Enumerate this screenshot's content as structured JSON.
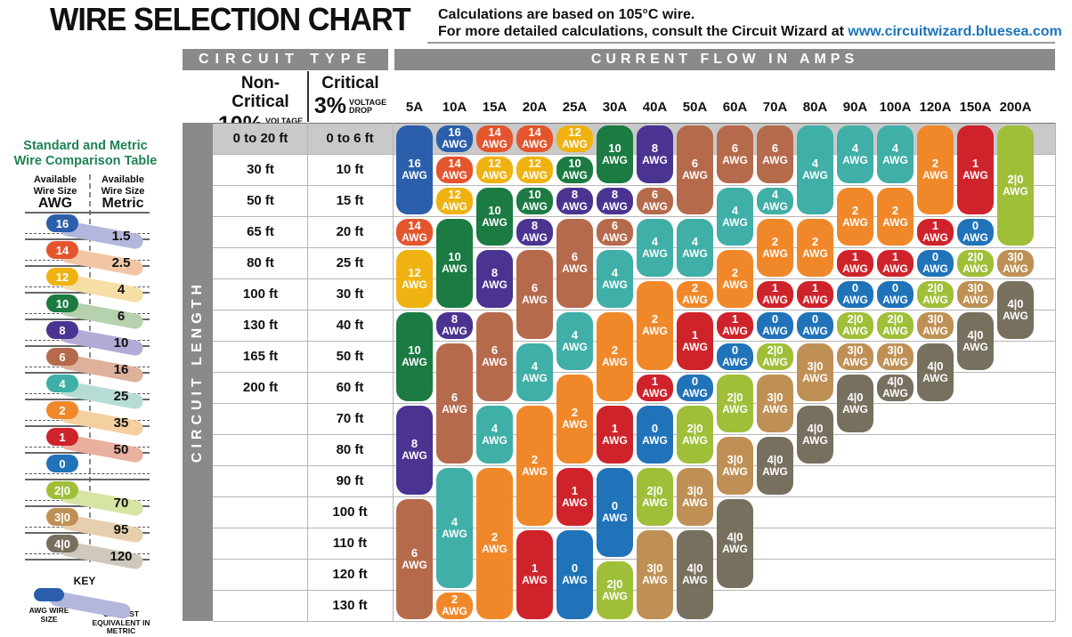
{
  "ui": {
    "title": "WIRE SELECTION CHART",
    "subtitle_line1": "Calculations are based on 105°C wire.",
    "subtitle_line2_prefix": "For more detailed calculations, consult the Circuit Wizard at ",
    "subtitle_link": "www.circuitwizard.bluesea.com",
    "circuit_type_header": "CIRCUIT TYPE",
    "current_flow_header": "CURRENT FLOW IN AMPS",
    "non_critical_label": "Non-Critical",
    "non_critical_pct": "10%",
    "critical_label": "Critical",
    "critical_pct": "3%",
    "voltage_drop_line1": "VOLTAGE",
    "voltage_drop_line2": "DROP",
    "circuit_length_label": "CIRCUIT LENGTH",
    "comparison_title_line1": "Standard and Metric",
    "comparison_title_line2": "Wire Comparison Table",
    "available_header": "Available Wire Size",
    "awg_unit": "AWG",
    "metric_unit": "Metric",
    "key_title": "KEY",
    "key_left_label": "AWG WIRE SIZE",
    "key_right_label": "CLOSEST EQUIVALENT IN METRIC"
  },
  "colors": {
    "header_bar_gray": "#8a8a8a",
    "row1_band_gray": "#c9c9c9",
    "grid_line": "#b5b5b5",
    "link_blue": "#1b75bb",
    "comparison_title_green": "#1e8253",
    "key_band_blue": "#b3b7dc",
    "wire_colors": {
      "16": "#2b5fac",
      "14": "#e4552e",
      "12": "#efb211",
      "10": "#1b7b42",
      "8": "#4b3391",
      "6": "#b56a4c",
      "4": "#3fafa8",
      "2": "#f0882a",
      "1": "#cf232b",
      "0": "#2173b9",
      "2|0": "#9fbf39",
      "3|0": "#bf9055",
      "4|0": "#77705f"
    }
  },
  "chart_data": {
    "type": "table",
    "title": "WIRE SELECTION CHART",
    "awg_suffix": "AWG",
    "rows": [
      {
        "non_critical": "0 to 20 ft",
        "critical": "0 to 6 ft"
      },
      {
        "non_critical": "30 ft",
        "critical": "10 ft"
      },
      {
        "non_critical": "50 ft",
        "critical": "15 ft"
      },
      {
        "non_critical": "65 ft",
        "critical": "20 ft"
      },
      {
        "non_critical": "80 ft",
        "critical": "25 ft"
      },
      {
        "non_critical": "100 ft",
        "critical": "30 ft"
      },
      {
        "non_critical": "130 ft",
        "critical": "40 ft"
      },
      {
        "non_critical": "165 ft",
        "critical": "50 ft"
      },
      {
        "non_critical": "200 ft",
        "critical": "60 ft"
      },
      {
        "non_critical": "",
        "critical": "70 ft"
      },
      {
        "non_critical": "",
        "critical": "80 ft"
      },
      {
        "non_critical": "",
        "critical": "90 ft"
      },
      {
        "non_critical": "",
        "critical": "100 ft"
      },
      {
        "non_critical": "",
        "critical": "110 ft"
      },
      {
        "non_critical": "",
        "critical": "120 ft"
      },
      {
        "non_critical": "",
        "critical": "130 ft"
      }
    ],
    "columns": [
      {
        "label": "5A",
        "pills": [
          [
            "16",
            1,
            3
          ],
          [
            "14",
            4,
            4
          ],
          [
            "12",
            5,
            6
          ],
          [
            "10",
            7,
            9
          ],
          [
            "8",
            10,
            12
          ],
          [
            "6",
            13,
            16
          ]
        ]
      },
      {
        "label": "10A",
        "pills": [
          [
            "16",
            1,
            1
          ],
          [
            "14",
            2,
            2
          ],
          [
            "12",
            3,
            3
          ],
          [
            "10",
            4,
            6
          ],
          [
            "8",
            7,
            7
          ],
          [
            "6",
            8,
            11
          ],
          [
            "4",
            12,
            15
          ],
          [
            "2",
            16,
            16
          ]
        ]
      },
      {
        "label": "15A",
        "pills": [
          [
            "14",
            1,
            1
          ],
          [
            "12",
            2,
            2
          ],
          [
            "10",
            3,
            4
          ],
          [
            "8",
            5,
            6
          ],
          [
            "6",
            7,
            9
          ],
          [
            "4",
            10,
            11
          ],
          [
            "2",
            12,
            16
          ]
        ]
      },
      {
        "label": "20A",
        "pills": [
          [
            "14",
            1,
            1
          ],
          [
            "12",
            2,
            2
          ],
          [
            "10",
            3,
            3
          ],
          [
            "8",
            4,
            4
          ],
          [
            "6",
            5,
            7
          ],
          [
            "4",
            8,
            9
          ],
          [
            "2",
            10,
            13
          ],
          [
            "1",
            14,
            16
          ]
        ]
      },
      {
        "label": "25A",
        "pills": [
          [
            "12",
            1,
            1
          ],
          [
            "10",
            2,
            2
          ],
          [
            "8",
            3,
            3
          ],
          [
            "6",
            4,
            6
          ],
          [
            "4",
            7,
            8
          ],
          [
            "2",
            9,
            11
          ],
          [
            "1",
            12,
            13
          ],
          [
            "0",
            14,
            16
          ]
        ]
      },
      {
        "label": "30A",
        "pills": [
          [
            "10",
            1,
            2
          ],
          [
            "8",
            3,
            3
          ],
          [
            "6",
            4,
            4
          ],
          [
            "4",
            5,
            6
          ],
          [
            "2",
            7,
            9
          ],
          [
            "1",
            10,
            11
          ],
          [
            "0",
            12,
            14
          ],
          [
            "2|0",
            15,
            16
          ]
        ]
      },
      {
        "label": "40A",
        "pills": [
          [
            "8",
            1,
            2
          ],
          [
            "6",
            3,
            3
          ],
          [
            "4",
            4,
            5
          ],
          [
            "2",
            6,
            8
          ],
          [
            "1",
            9,
            9
          ],
          [
            "0",
            10,
            11
          ],
          [
            "2|0",
            12,
            13
          ],
          [
            "3|0",
            14,
            16
          ]
        ]
      },
      {
        "label": "50A",
        "pills": [
          [
            "6",
            1,
            3
          ],
          [
            "4",
            4,
            5
          ],
          [
            "2",
            6,
            6
          ],
          [
            "1",
            7,
            8
          ],
          [
            "0",
            9,
            9
          ],
          [
            "2|0",
            10,
            11
          ],
          [
            "3|0",
            12,
            13
          ],
          [
            "4|0",
            14,
            16
          ]
        ]
      },
      {
        "label": "60A",
        "pills": [
          [
            "6",
            1,
            2
          ],
          [
            "4",
            3,
            4
          ],
          [
            "2",
            5,
            6
          ],
          [
            "1",
            7,
            7
          ],
          [
            "0",
            8,
            8
          ],
          [
            "2|0",
            9,
            10
          ],
          [
            "3|0",
            11,
            12
          ],
          [
            "4|0",
            13,
            15
          ]
        ]
      },
      {
        "label": "70A",
        "pills": [
          [
            "6",
            1,
            2
          ],
          [
            "4",
            3,
            3
          ],
          [
            "2",
            4,
            5
          ],
          [
            "1",
            6,
            6
          ],
          [
            "0",
            7,
            7
          ],
          [
            "2|0",
            8,
            8
          ],
          [
            "3|0",
            9,
            10
          ],
          [
            "4|0",
            11,
            12
          ]
        ]
      },
      {
        "label": "80A",
        "pills": [
          [
            "4",
            1,
            3
          ],
          [
            "2",
            4,
            5
          ],
          [
            "1",
            6,
            6
          ],
          [
            "0",
            7,
            7
          ],
          [
            "3|0",
            8,
            9
          ],
          [
            "4|0",
            10,
            11
          ]
        ]
      },
      {
        "label": "90A",
        "pills": [
          [
            "4",
            1,
            2
          ],
          [
            "2",
            3,
            4
          ],
          [
            "1",
            5,
            5
          ],
          [
            "0",
            6,
            6
          ],
          [
            "2|0",
            7,
            7
          ],
          [
            "3|0",
            8,
            8
          ],
          [
            "4|0",
            9,
            10
          ]
        ]
      },
      {
        "label": "100A",
        "pills": [
          [
            "4",
            1,
            2
          ],
          [
            "2",
            3,
            4
          ],
          [
            "1",
            5,
            5
          ],
          [
            "0",
            6,
            6
          ],
          [
            "2|0",
            7,
            7
          ],
          [
            "3|0",
            8,
            8
          ],
          [
            "4|0",
            9,
            9
          ]
        ]
      },
      {
        "label": "120A",
        "pills": [
          [
            "2",
            1,
            3
          ],
          [
            "1",
            4,
            4
          ],
          [
            "0",
            5,
            5
          ],
          [
            "2|0",
            6,
            6
          ],
          [
            "3|0",
            7,
            7
          ],
          [
            "4|0",
            8,
            9
          ]
        ]
      },
      {
        "label": "150A",
        "pills": [
          [
            "1",
            1,
            3
          ],
          [
            "0",
            4,
            4
          ],
          [
            "2|0",
            5,
            5
          ],
          [
            "3|0",
            6,
            6
          ],
          [
            "4|0",
            7,
            8
          ]
        ]
      },
      {
        "label": "200A",
        "pills": [
          [
            "2|0",
            1,
            4
          ],
          [
            "3|0",
            5,
            5
          ],
          [
            "4|0",
            6,
            7
          ]
        ]
      }
    ],
    "comparison_rows": [
      {
        "awg": "16",
        "metric": "1.5",
        "band": "#b3b7dc"
      },
      {
        "awg": "14",
        "metric": "2.5",
        "band": "#f2c6a4"
      },
      {
        "awg": "12",
        "metric": "4",
        "band": "#f5dfa6"
      },
      {
        "awg": "10",
        "metric": "6",
        "band": "#b5d1ad"
      },
      {
        "awg": "8",
        "metric": "10",
        "band": "#b3abd6"
      },
      {
        "awg": "6",
        "metric": "16",
        "band": "#ddb19c"
      },
      {
        "awg": "4",
        "metric": "25",
        "band": "#b7dcd6"
      },
      {
        "awg": "2",
        "metric": "35",
        "band": "#f4cfa0"
      },
      {
        "awg": "1",
        "metric": "50",
        "band": "#e9af9f"
      },
      {
        "awg": "0",
        "metric": null,
        "band": null
      },
      {
        "awg": "2|0",
        "metric": "70",
        "band": "#d6e5a4"
      },
      {
        "awg": "3|0",
        "metric": "95",
        "band": "#e6cfae"
      },
      {
        "awg": "4|0",
        "metric": "120",
        "band": "#cfc9bd"
      }
    ]
  }
}
